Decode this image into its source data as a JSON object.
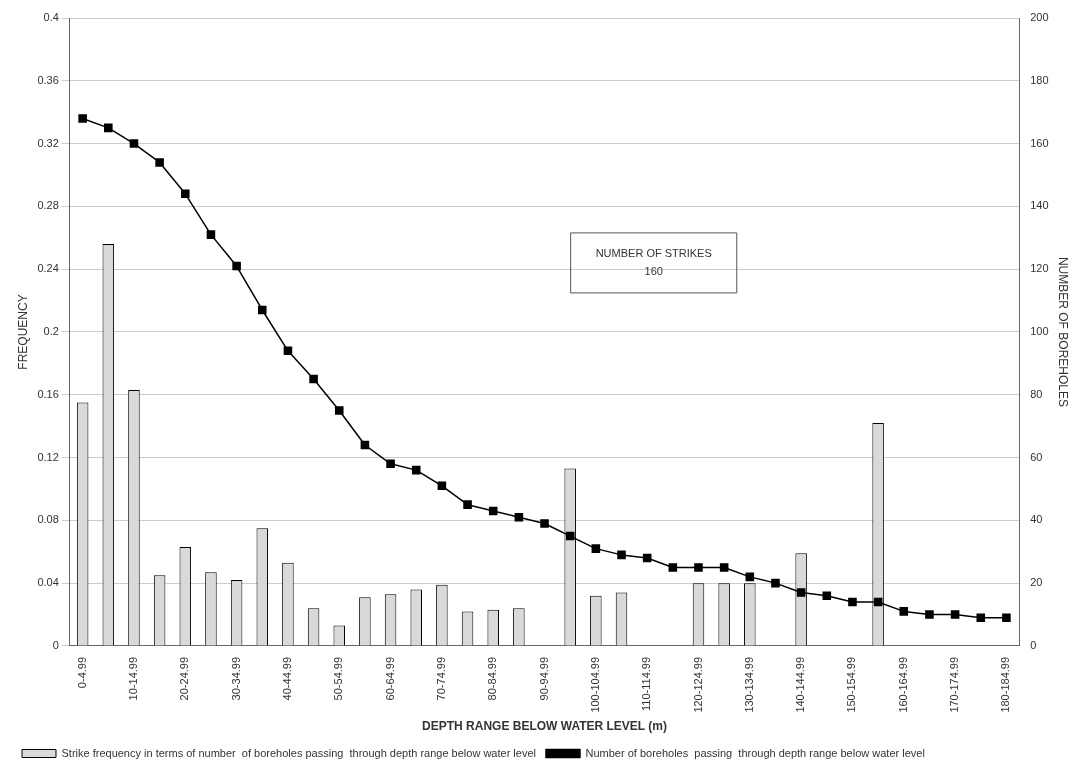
{
  "chart_data": {
    "type": "bar",
    "xlabel": "DEPTH RANGE BELOW WATER LEVEL (m)",
    "ylabel": "FREQUENCY",
    "y2label": "NUMBER OF BOREHOLES",
    "categories": [
      "0-4.99",
      null,
      "10-14.99",
      null,
      "20-24.99",
      null,
      "30-34.99",
      null,
      "40-44.99",
      null,
      "50-54.99",
      null,
      "60-64.99",
      null,
      "70-74.99",
      null,
      "80-84.99",
      null,
      "90-94.99",
      null,
      "100-104.99",
      null,
      "110-114.99",
      null,
      "120-124.99",
      null,
      "130-134.99",
      null,
      "140-144.99",
      null,
      "150-154.99",
      null,
      "160-164.99",
      null,
      "170-174.99",
      null,
      "180-184.99"
    ],
    "series": [
      {
        "name": "Strike frequency in terms of number  of boreholes passing  through depth range below water level",
        "color": "#d9d9d9",
        "values": [
          0.155,
          0.256,
          0.163,
          0.045,
          0.063,
          0.047,
          0.042,
          0.075,
          0.053,
          0.024,
          0.013,
          0.031,
          0.033,
          0.036,
          0.039,
          0.022,
          0.023,
          0.024,
          null,
          0.113,
          0.032,
          0.034,
          null,
          null,
          0.04,
          0.04,
          0.04,
          null,
          0.059,
          null,
          null,
          0.142,
          null,
          null,
          null,
          null,
          null
        ]
      },
      {
        "name": "Number of boreholes  passing  through depth range below water level",
        "type": "line",
        "axis": "y2",
        "color": "#000000",
        "marker": "square",
        "values": [
          168,
          165,
          160,
          154,
          144,
          131,
          121,
          107,
          94,
          85,
          75,
          64,
          58,
          56,
          51,
          45,
          43,
          41,
          39,
          35,
          31,
          29,
          28,
          25,
          25,
          25,
          22,
          20,
          17,
          16,
          14,
          14,
          11,
          10,
          10,
          9,
          9
        ]
      }
    ],
    "ylim": [
      0,
      0.4
    ],
    "yticks": [
      0,
      0.04,
      0.08,
      0.12,
      0.16,
      0.2,
      0.24,
      0.28,
      0.32,
      0.36,
      0.4
    ],
    "y2lim": [
      0,
      200
    ],
    "y2ticks": [
      0,
      20,
      40,
      60,
      80,
      100,
      120,
      140,
      160,
      180,
      200
    ],
    "grid": "y",
    "legend": "bottom",
    "annotations": [
      "NUMBER OF STRIKES\n160"
    ]
  }
}
